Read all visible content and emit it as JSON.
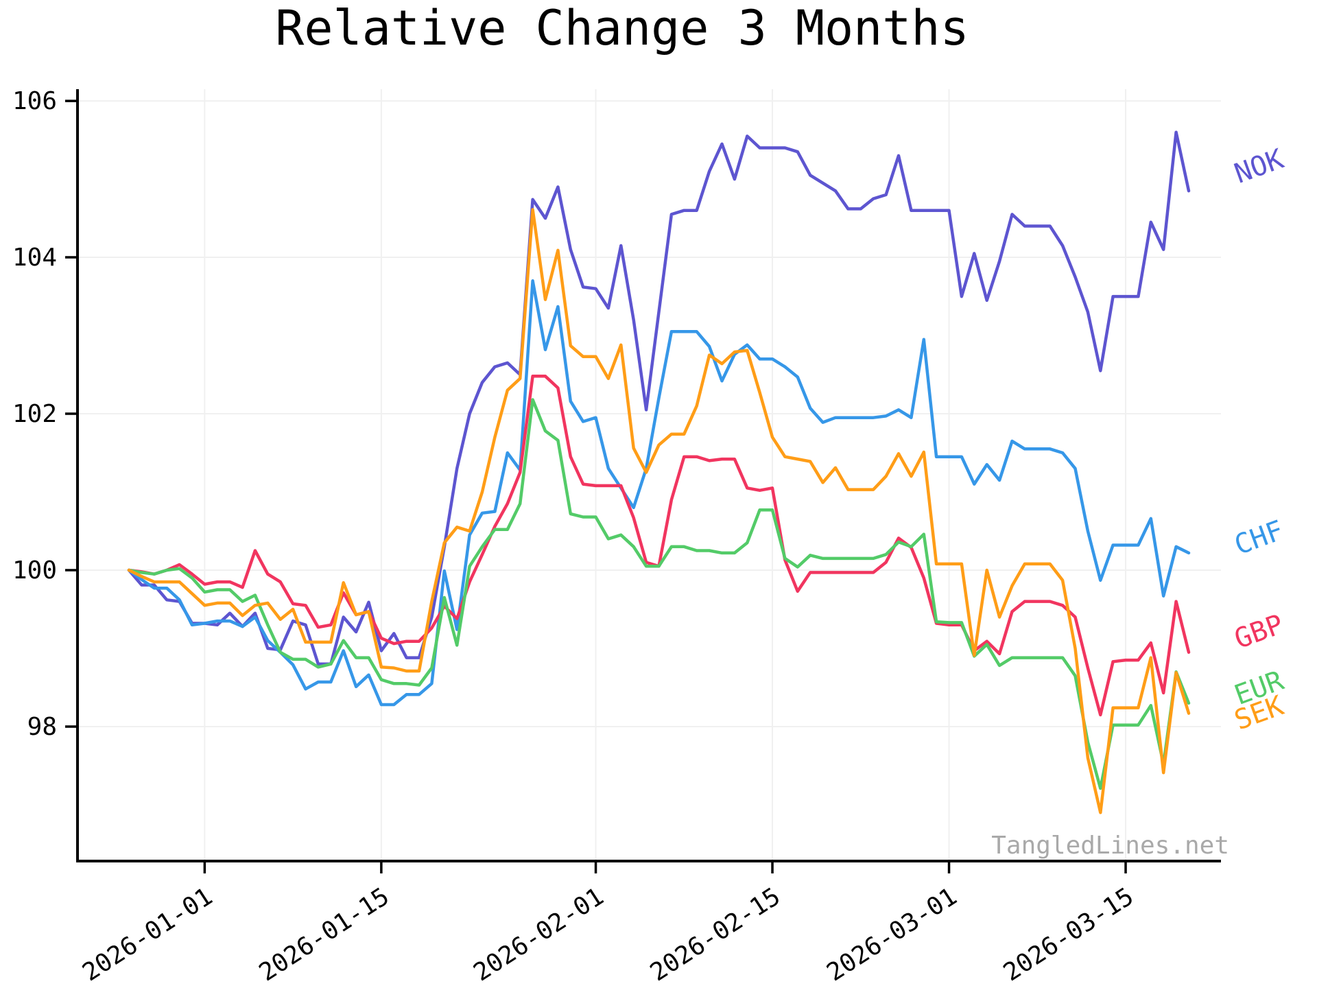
{
  "figure": {
    "title": "Relative Change 3 Months",
    "watermark": "TangledLines.net"
  },
  "chart_data": {
    "type": "line",
    "title": "Relative Change 3 Months",
    "xlabel": "",
    "ylabel": "",
    "grid": true,
    "background": "#ffffff",
    "grid_color": "#f0f0f0",
    "axis_color": "#000000",
    "watermark": "TangledLines.net",
    "watermark_color": "#a9a9a9",
    "ylim": [
      96.28,
      106.15
    ],
    "yticks": [
      98,
      100,
      102,
      104,
      106
    ],
    "x_tick_indices": [
      6,
      20,
      37,
      51,
      65,
      79
    ],
    "x_tick_labels": [
      "2026-01-01",
      "2026-01-15",
      "2026-02-01",
      "2026-02-15",
      "2026-03-01",
      "2026-03-15"
    ],
    "x_tick_rotation_deg": 33,
    "n_points": 85,
    "series": [
      {
        "name": "NOK",
        "color": "#5d55d0",
        "label_value": 105.05,
        "values": [
          100.0,
          99.81,
          99.81,
          99.62,
          99.6,
          99.32,
          99.32,
          99.3,
          99.45,
          99.28,
          99.45,
          99.0,
          98.98,
          99.35,
          99.3,
          98.8,
          98.8,
          99.4,
          99.21,
          99.59,
          98.97,
          99.19,
          98.88,
          98.88,
          99.4,
          100.3,
          101.3,
          102.0,
          102.4,
          102.6,
          102.65,
          102.5,
          104.74,
          104.5,
          104.9,
          104.1,
          103.62,
          103.6,
          103.35,
          104.15,
          103.2,
          102.05,
          103.3,
          104.55,
          104.6,
          104.6,
          105.1,
          105.45,
          105.0,
          105.55,
          105.4,
          105.4,
          105.4,
          105.35,
          105.05,
          104.95,
          104.85,
          104.62,
          104.62,
          104.75,
          104.8,
          105.3,
          104.6,
          104.6,
          104.6,
          104.6,
          103.5,
          104.05,
          103.45,
          103.95,
          104.55,
          104.4,
          104.4,
          104.4,
          104.15,
          103.75,
          103.3,
          102.55,
          103.5,
          103.5,
          103.5,
          104.45,
          104.1,
          105.6,
          104.85
        ]
      },
      {
        "name": "CHF",
        "color": "#3697e8",
        "label_value": 100.3,
        "values": [
          100.0,
          99.88,
          99.77,
          99.77,
          99.62,
          99.3,
          99.32,
          99.35,
          99.35,
          99.28,
          99.4,
          99.1,
          98.95,
          98.79,
          98.48,
          98.57,
          98.57,
          98.97,
          98.51,
          98.66,
          98.28,
          98.28,
          98.41,
          98.41,
          98.55,
          99.99,
          99.24,
          100.45,
          100.73,
          100.75,
          101.5,
          101.28,
          103.7,
          102.82,
          103.37,
          102.16,
          101.9,
          101.95,
          101.3,
          101.05,
          100.8,
          101.3,
          102.2,
          103.05,
          103.05,
          103.05,
          102.86,
          102.42,
          102.76,
          102.88,
          102.7,
          102.7,
          102.6,
          102.47,
          102.07,
          101.89,
          101.95,
          101.95,
          101.95,
          101.95,
          101.97,
          102.05,
          101.95,
          102.95,
          101.45,
          101.45,
          101.45,
          101.1,
          101.35,
          101.15,
          101.65,
          101.55,
          101.55,
          101.55,
          101.5,
          101.3,
          100.5,
          99.87,
          100.32,
          100.32,
          100.32,
          100.66,
          99.67,
          100.3,
          100.22
        ]
      },
      {
        "name": "GBP",
        "color": "#f1355f",
        "label_value": 99.1,
        "values": [
          100.0,
          99.98,
          99.95,
          100.0,
          100.07,
          99.95,
          99.82,
          99.85,
          99.85,
          99.78,
          100.25,
          99.95,
          99.85,
          99.57,
          99.55,
          99.27,
          99.3,
          99.71,
          99.43,
          99.47,
          99.13,
          99.06,
          99.09,
          99.09,
          99.26,
          99.54,
          99.38,
          99.85,
          100.2,
          100.56,
          100.85,
          101.25,
          102.48,
          102.48,
          102.33,
          101.45,
          101.1,
          101.08,
          101.08,
          101.08,
          100.67,
          100.1,
          100.05,
          100.9,
          101.45,
          101.45,
          101.4,
          101.42,
          101.42,
          101.05,
          101.02,
          101.05,
          100.13,
          99.73,
          99.97,
          99.97,
          99.97,
          99.97,
          99.97,
          99.97,
          100.1,
          100.41,
          100.29,
          99.9,
          99.32,
          99.3,
          99.3,
          98.97,
          99.09,
          98.93,
          99.47,
          99.6,
          99.6,
          99.6,
          99.55,
          99.4,
          98.75,
          98.15,
          98.83,
          98.85,
          98.85,
          99.07,
          98.43,
          99.6,
          98.95
        ]
      },
      {
        "name": "EUR",
        "color": "#53cb68",
        "label_value": 98.38,
        "values": [
          100.0,
          99.97,
          99.95,
          100.0,
          100.02,
          99.9,
          99.72,
          99.75,
          99.75,
          99.6,
          99.68,
          99.3,
          98.95,
          98.86,
          98.86,
          98.76,
          98.8,
          99.1,
          98.88,
          98.88,
          98.6,
          98.55,
          98.55,
          98.53,
          98.75,
          99.65,
          99.04,
          100.05,
          100.3,
          100.52,
          100.52,
          100.85,
          102.18,
          101.78,
          101.66,
          100.72,
          100.68,
          100.68,
          100.4,
          100.45,
          100.3,
          100.05,
          100.05,
          100.3,
          100.3,
          100.25,
          100.25,
          100.22,
          100.22,
          100.35,
          100.77,
          100.77,
          100.15,
          100.04,
          100.19,
          100.15,
          100.15,
          100.15,
          100.15,
          100.15,
          100.2,
          100.36,
          100.3,
          100.46,
          99.34,
          99.33,
          99.33,
          98.9,
          99.05,
          98.78,
          98.88,
          98.88,
          98.88,
          98.88,
          98.88,
          98.65,
          97.8,
          97.21,
          98.02,
          98.02,
          98.02,
          98.27,
          97.52,
          98.7,
          98.3
        ]
      },
      {
        "name": "SEK",
        "color": "#ff9d17",
        "label_value": 98.06,
        "values": [
          100.0,
          99.92,
          99.85,
          99.85,
          99.85,
          99.7,
          99.55,
          99.58,
          99.58,
          99.42,
          99.55,
          99.58,
          99.37,
          99.5,
          99.08,
          99.08,
          99.08,
          99.84,
          99.43,
          99.47,
          98.76,
          98.75,
          98.71,
          98.71,
          99.6,
          100.35,
          100.55,
          100.5,
          101.0,
          101.7,
          102.3,
          102.45,
          104.61,
          103.46,
          104.09,
          102.87,
          102.73,
          102.73,
          102.45,
          102.88,
          101.56,
          101.25,
          101.6,
          101.74,
          101.74,
          102.1,
          102.75,
          102.64,
          102.79,
          102.81,
          102.27,
          101.7,
          101.45,
          101.42,
          101.39,
          101.12,
          101.31,
          101.03,
          101.03,
          101.03,
          101.2,
          101.49,
          101.2,
          101.51,
          100.08,
          100.08,
          100.08,
          98.91,
          100.0,
          99.4,
          99.8,
          100.08,
          100.08,
          100.08,
          99.87,
          99.0,
          97.6,
          96.9,
          98.24,
          98.24,
          98.24,
          98.88,
          97.41,
          98.69,
          98.17
        ]
      }
    ]
  }
}
